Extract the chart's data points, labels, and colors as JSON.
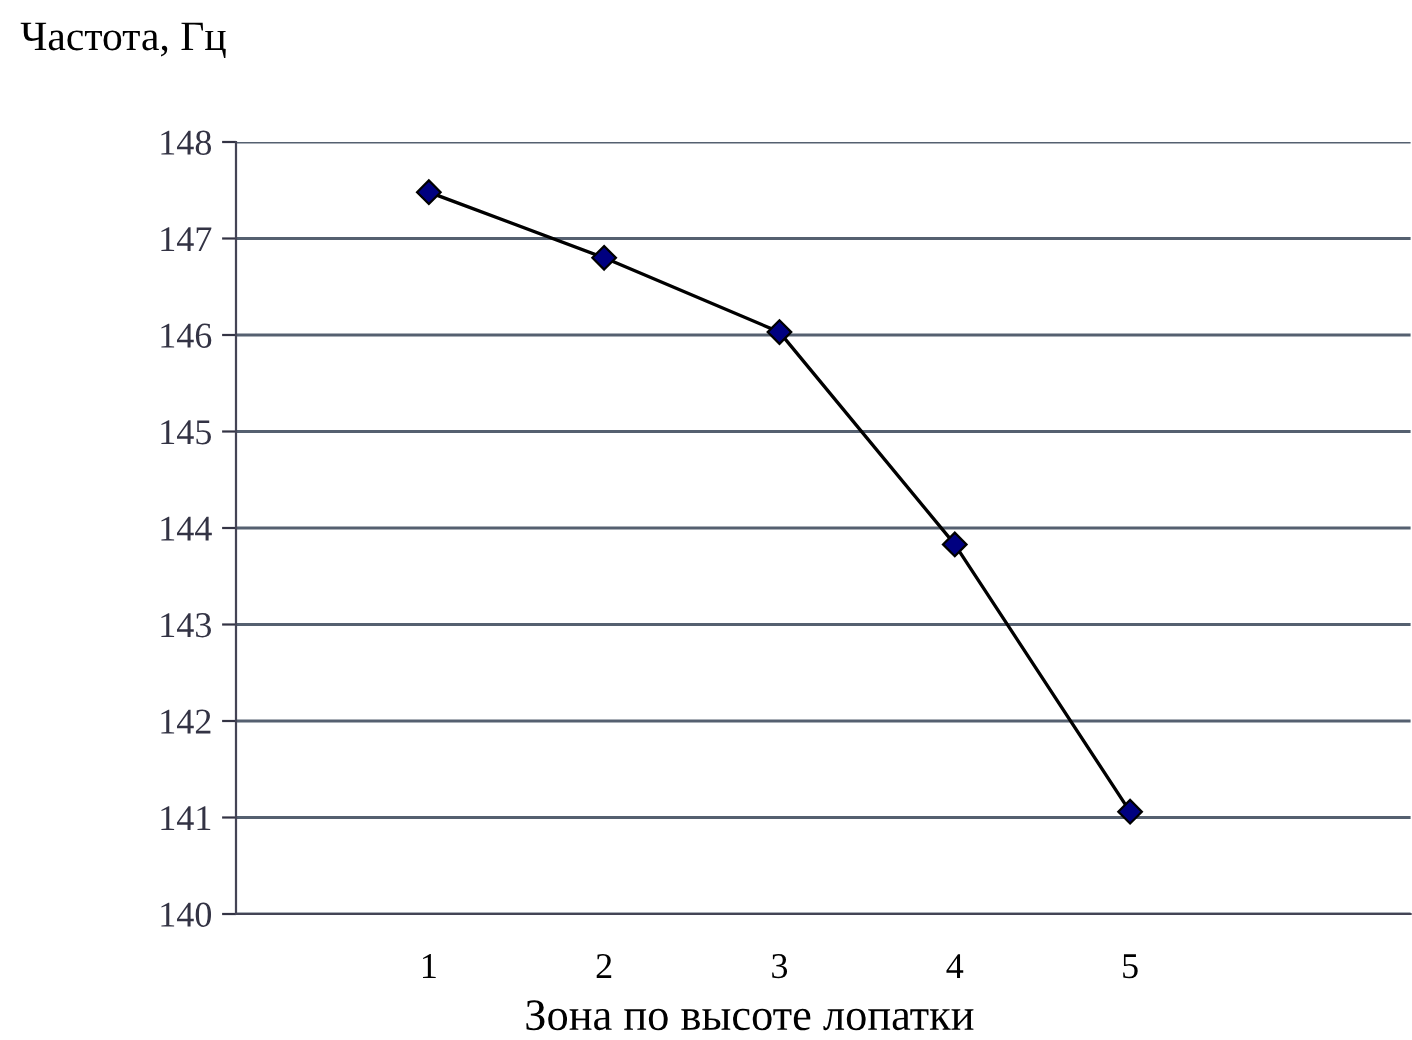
{
  "chart_data": {
    "type": "line",
    "xlabel": "Зона по высоте лопатки",
    "ylabel": "Частота, Гц",
    "categories": [
      "1",
      "2",
      "3",
      "4",
      "5"
    ],
    "series": [
      {
        "color": "#000080",
        "values": [
          147.48,
          146.8,
          146.03,
          143.83,
          141.06
        ]
      }
    ],
    "ylim": [
      140,
      148
    ],
    "yticks": [
      140,
      141,
      142,
      143,
      144,
      145,
      146,
      147,
      148
    ],
    "grid": "y",
    "marker": "diamond",
    "line_style": "solid",
    "legend": false
  }
}
